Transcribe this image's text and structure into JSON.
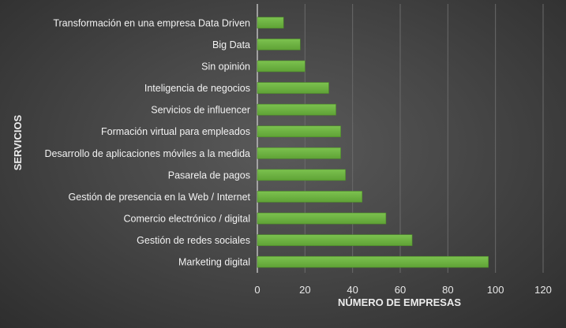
{
  "chart_data": {
    "type": "bar",
    "orientation": "horizontal",
    "categories": [
      "Transformación en una empresa Data Driven",
      "Big Data",
      "Sin opinión",
      "Inteligencia de negocios",
      "Servicios de influencer",
      "Formación virtual para empleados",
      "Desarrollo de aplicaciones móviles a la medida",
      "Pasarela de pagos",
      "Gestión de presencia en la Web / Internet",
      "Comercio electrónico / digital",
      "Gestión de redes sociales",
      "Marketing digital"
    ],
    "values": [
      11,
      18,
      20,
      30,
      33,
      35,
      35,
      37,
      44,
      54,
      65,
      97
    ],
    "xlabel": "NÚMERO DE EMPRESAS",
    "ylabel": "SERVICIOS",
    "xlim": [
      0,
      120
    ],
    "xticks": [
      "0",
      "20",
      "40",
      "60",
      "80",
      "100",
      "120"
    ],
    "grid": true,
    "bar_color": "#6cb33f"
  }
}
